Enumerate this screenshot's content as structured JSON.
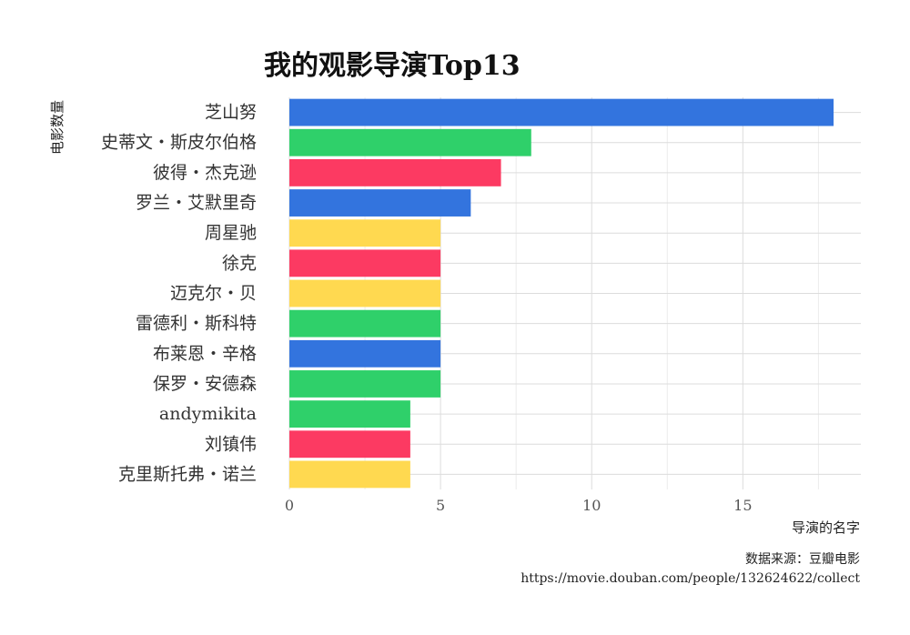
{
  "chart_data": {
    "type": "bar",
    "orientation": "horizontal",
    "title": "我的观影导演Top13",
    "xlabel": "导演的名字",
    "ylabel": "电影数量",
    "categories": [
      "芝山努",
      "史蒂文・斯皮尔伯格",
      "彼得・杰克逊",
      "罗兰・艾默里奇",
      "周星驰",
      "徐克",
      "迈克尔・贝",
      "雷德利・斯科特",
      "布莱恩・辛格",
      "保罗・安德森",
      "andymikita",
      "刘镇伟",
      "克里斯托弗・诺兰"
    ],
    "values": [
      18,
      8,
      7,
      6,
      5,
      5,
      5,
      5,
      5,
      5,
      4,
      4,
      4
    ],
    "bar_colors": [
      "#3374de",
      "#2fd06a",
      "#fc3a62",
      "#3374de",
      "#ffd950",
      "#fc3a62",
      "#ffd950",
      "#2fd06a",
      "#3374de",
      "#2fd06a",
      "#2fd06a",
      "#fc3a62",
      "#ffd950"
    ],
    "x_ticks": [
      0,
      5,
      10,
      15
    ],
    "xlim": [
      0,
      18.9
    ],
    "grid": true,
    "legend": "none",
    "caption": [
      "数据来源：豆瓣电影",
      "https://movie.douban.com/people/132624622/collect"
    ]
  }
}
